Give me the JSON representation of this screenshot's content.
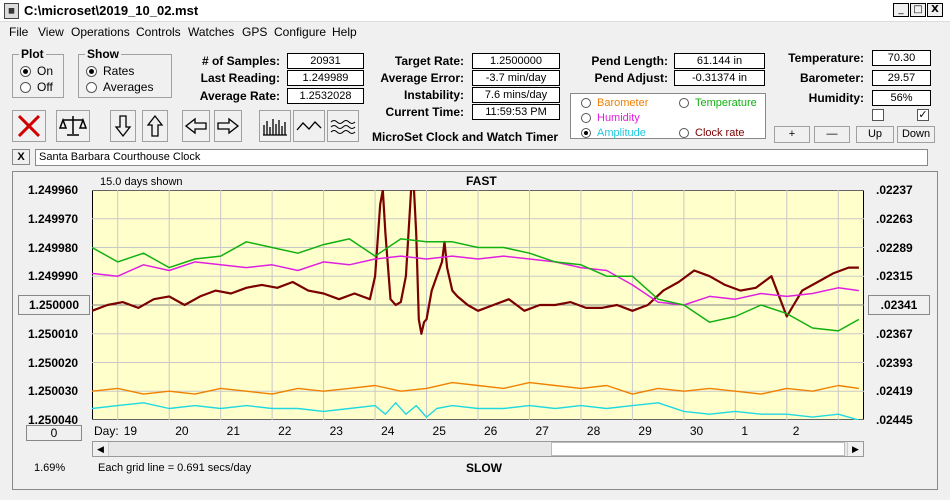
{
  "window": {
    "title": "C:\\microset\\2019_10_02.mst",
    "icon": "calculator-icon",
    "minimize": "_",
    "maximize": "□",
    "close": "X"
  },
  "menu": [
    "File",
    "View",
    "Operations",
    "Controls",
    "Watches",
    "GPS",
    "Configure",
    "Help"
  ],
  "plot_group": {
    "title": "Plot",
    "on": "On",
    "off": "Off",
    "selected": "On"
  },
  "show_group": {
    "title": "Show",
    "rates": "Rates",
    "averages": "Averages",
    "selected": "Rates"
  },
  "stats": {
    "samples_label": "# of Samples:",
    "samples": "20931",
    "last_reading_label": "Last Reading:",
    "last_reading": "1.249989",
    "average_rate_label": "Average Rate:",
    "average_rate": "1.2532028",
    "target_rate_label": "Target Rate:",
    "target_rate": "1.2500000",
    "average_error_label": "Average Error:",
    "average_error": "-3.7 min/day",
    "instability_label": "Instability:",
    "instability": "7.6 mins/day",
    "current_time_label": "Current Time:",
    "current_time": "11:59:53 PM",
    "pend_length_label": "Pend Length:",
    "pend_length": "61.144 in",
    "pend_adjust_label": "Pend Adjust:",
    "pend_adjust": "-0.31374 in",
    "temperature_label": "Temperature:",
    "temperature": "70.30",
    "barometer_label": "Barometer:",
    "barometer": "29.57",
    "humidity_label": "Humidity:",
    "humidity": "56%"
  },
  "app_label": "MicroSet Clock and Watch Timer",
  "sensors": {
    "barometer": "Barometer",
    "temperature": "Temperature",
    "humidity": "Humidity",
    "amplitude": "Amplitude",
    "clock_rate": "Clock rate",
    "selected": "Amplitude"
  },
  "controls": {
    "plus": "+",
    "minus": "—",
    "up": "Up",
    "down": "Down"
  },
  "checkboxes": {
    "first": false,
    "second": true,
    "check_glyph": "✓"
  },
  "toolbar_icons": [
    "clear-icon",
    "balance-scale-icon",
    "down-arrow-icon",
    "up-arrow-icon",
    "left-arrow-icon",
    "right-arrow-icon",
    "bar-graph-icon",
    "line-graph-icon",
    "wave-graph-icon"
  ],
  "comment_bar": {
    "close": "X",
    "text": "Santa Barbara Courthouse Clock"
  },
  "chart_header": {
    "days_shown": "15.0 days shown",
    "top_label": "FAST",
    "bottom_label": "SLOW"
  },
  "left_buttons": {
    "center": "1.250000",
    "offset": "0"
  },
  "right_button": ".02341",
  "footer": {
    "percent": "1.69%",
    "grid_info": "Each grid line = 0.691 secs/day",
    "day_label": "Day:"
  },
  "chart_data": {
    "type": "line",
    "y_left_ticks": [
      "1.249960",
      "1.249970",
      "1.249980",
      "1.249990",
      "1.250000",
      "1.250010",
      "1.250020",
      "1.250030",
      "1.250040"
    ],
    "y_left_range": [
      1.24996,
      1.25004
    ],
    "y_right_ticks": [
      ".02237",
      ".02263",
      ".02289",
      ".02315",
      ".02341",
      ".02367",
      ".02393",
      ".02419",
      ".02445"
    ],
    "x_day_labels": [
      "19",
      "20",
      "21",
      "22",
      "23",
      "24",
      "25",
      "26",
      "27",
      "28",
      "29",
      "30",
      "1",
      "2"
    ],
    "x_range": [
      18.5,
      33.5
    ],
    "grid": true,
    "series": [
      {
        "name": "Rate",
        "color": "#7b0000",
        "width": 2.2,
        "x": [
          18.5,
          18.8,
          19.1,
          19.4,
          19.7,
          20.0,
          20.3,
          20.6,
          20.9,
          21.2,
          21.5,
          21.8,
          22.1,
          22.4,
          22.7,
          23.0,
          23.3,
          23.6,
          23.9,
          24.0,
          24.1,
          24.15,
          24.2,
          24.3,
          24.4,
          24.5,
          24.6,
          24.7,
          24.75,
          24.8,
          24.85,
          24.9,
          24.95,
          25.0,
          25.05,
          25.1,
          25.2,
          25.3,
          25.35,
          25.4,
          25.5,
          25.6,
          25.8,
          26.0,
          26.3,
          26.6,
          26.9,
          27.2,
          27.5,
          27.8,
          28.1,
          28.4,
          28.7,
          29.0,
          29.3,
          29.6,
          29.9,
          30.2,
          30.5,
          30.8,
          31.1,
          31.4,
          31.7,
          32.0,
          32.3,
          32.6,
          32.9,
          33.2,
          33.4
        ],
        "y": [
          1.250002,
          1.25,
          1.249999,
          1.250001,
          1.249998,
          1.249997,
          1.25,
          1.249997,
          1.249995,
          1.249996,
          1.249994,
          1.249993,
          1.249994,
          1.249992,
          1.249995,
          1.249996,
          1.249998,
          1.249996,
          1.249998,
          1.24999,
          1.249965,
          1.24996,
          1.249975,
          1.249998,
          1.25,
          1.249999,
          1.24999,
          1.24996,
          1.249958,
          1.249975,
          1.250005,
          1.25001,
          1.250006,
          1.250005,
          1.25,
          1.249995,
          1.24999,
          1.249985,
          1.249978,
          1.249987,
          1.249995,
          1.249997,
          1.25,
          1.250002,
          1.25,
          1.249998,
          1.250002,
          1.25,
          1.25,
          1.249999,
          1.250001,
          1.250001,
          1.25,
          1.250002,
          1.25,
          1.249995,
          1.249992,
          1.249988,
          1.24999,
          1.249993,
          1.249995,
          1.249994,
          1.24999,
          1.250004,
          1.249995,
          1.249992,
          1.249989,
          1.249987,
          1.249987
        ]
      },
      {
        "name": "Humidity",
        "color": "#e020e0",
        "width": 1.5,
        "x": [
          18.5,
          19.0,
          19.5,
          20.0,
          20.5,
          21.0,
          21.5,
          22.0,
          22.5,
          23.0,
          23.5,
          24.0,
          24.5,
          25.0,
          25.5,
          26.0,
          26.5,
          27.0,
          27.5,
          28.0,
          28.5,
          29.0,
          29.5,
          30.0,
          30.5,
          31.0,
          31.5,
          32.0,
          32.5,
          33.0,
          33.4
        ],
        "y": [
          1.249989,
          1.24999,
          1.249986,
          1.249988,
          1.249985,
          1.249986,
          1.249987,
          1.249986,
          1.249988,
          1.249985,
          1.249986,
          1.249984,
          1.249983,
          1.249984,
          1.249983,
          1.249984,
          1.249983,
          1.249984,
          1.249985,
          1.249987,
          1.249988,
          1.249993,
          1.249999,
          1.25,
          1.249997,
          1.249998,
          1.249996,
          1.249997,
          1.249996,
          1.249994,
          1.249995
        ]
      },
      {
        "name": "Temperature",
        "color": "#10b010",
        "width": 1.5,
        "x": [
          18.5,
          19.0,
          19.5,
          20.0,
          20.5,
          21.0,
          21.5,
          22.0,
          22.5,
          23.0,
          23.5,
          24.0,
          24.5,
          25.0,
          25.5,
          26.0,
          26.5,
          27.0,
          27.5,
          28.0,
          28.5,
          29.0,
          29.5,
          30.0,
          30.5,
          31.0,
          31.5,
          32.0,
          32.5,
          33.0,
          33.4
        ],
        "y": [
          1.24998,
          1.249985,
          1.249982,
          1.249987,
          1.249984,
          1.249983,
          1.249978,
          1.24998,
          1.249982,
          1.249979,
          1.249977,
          1.249983,
          1.249977,
          1.249978,
          1.249978,
          1.24998,
          1.24998,
          1.249982,
          1.249985,
          1.249986,
          1.24999,
          1.24999,
          1.249998,
          1.25,
          1.250006,
          1.250004,
          1.25,
          1.250003,
          1.250008,
          1.250009,
          1.250005
        ]
      },
      {
        "name": "Barometer",
        "color": "#f08000",
        "width": 1.4,
        "x": [
          18.5,
          19.0,
          19.5,
          20.0,
          20.5,
          21.0,
          21.5,
          22.0,
          22.5,
          23.0,
          23.5,
          24.0,
          24.5,
          25.0,
          25.5,
          26.0,
          26.5,
          27.0,
          27.5,
          28.0,
          28.5,
          29.0,
          29.5,
          30.0,
          30.5,
          31.0,
          31.5,
          32.0,
          32.5,
          33.0,
          33.4
        ],
        "y": [
          1.25003,
          1.250029,
          1.250031,
          1.25003,
          1.250031,
          1.250029,
          1.25003,
          1.250031,
          1.250029,
          1.25003,
          1.250029,
          1.250028,
          1.25003,
          1.250029,
          1.250027,
          1.250028,
          1.250029,
          1.250027,
          1.250028,
          1.250029,
          1.250028,
          1.250031,
          1.250029,
          1.25003,
          1.250029,
          1.25003,
          1.250031,
          1.250029,
          1.25003,
          1.250028,
          1.250029
        ]
      },
      {
        "name": "Amplitude",
        "color": "#20d8e0",
        "width": 1.4,
        "x": [
          18.5,
          19.0,
          19.5,
          20.0,
          20.5,
          21.0,
          21.5,
          22.0,
          22.5,
          23.0,
          23.5,
          24.0,
          24.2,
          24.4,
          24.6,
          24.8,
          25.0,
          25.2,
          25.5,
          26.0,
          26.5,
          27.0,
          27.5,
          28.0,
          28.5,
          29.0,
          29.5,
          30.0,
          30.5,
          31.0,
          31.5,
          32.0,
          32.5,
          33.0,
          33.4
        ],
        "y": [
          1.250036,
          1.250035,
          1.250034,
          1.250036,
          1.250035,
          1.250036,
          1.250035,
          1.250036,
          1.250036,
          1.250037,
          1.250036,
          1.250035,
          1.250038,
          1.250034,
          1.250038,
          1.250035,
          1.250039,
          1.250036,
          1.250035,
          1.250036,
          1.250036,
          1.250035,
          1.250036,
          1.250035,
          1.250036,
          1.250035,
          1.250034,
          1.250037,
          1.250038,
          1.250037,
          1.250038,
          1.250038,
          1.250039,
          1.250038,
          1.25004
        ]
      }
    ]
  }
}
